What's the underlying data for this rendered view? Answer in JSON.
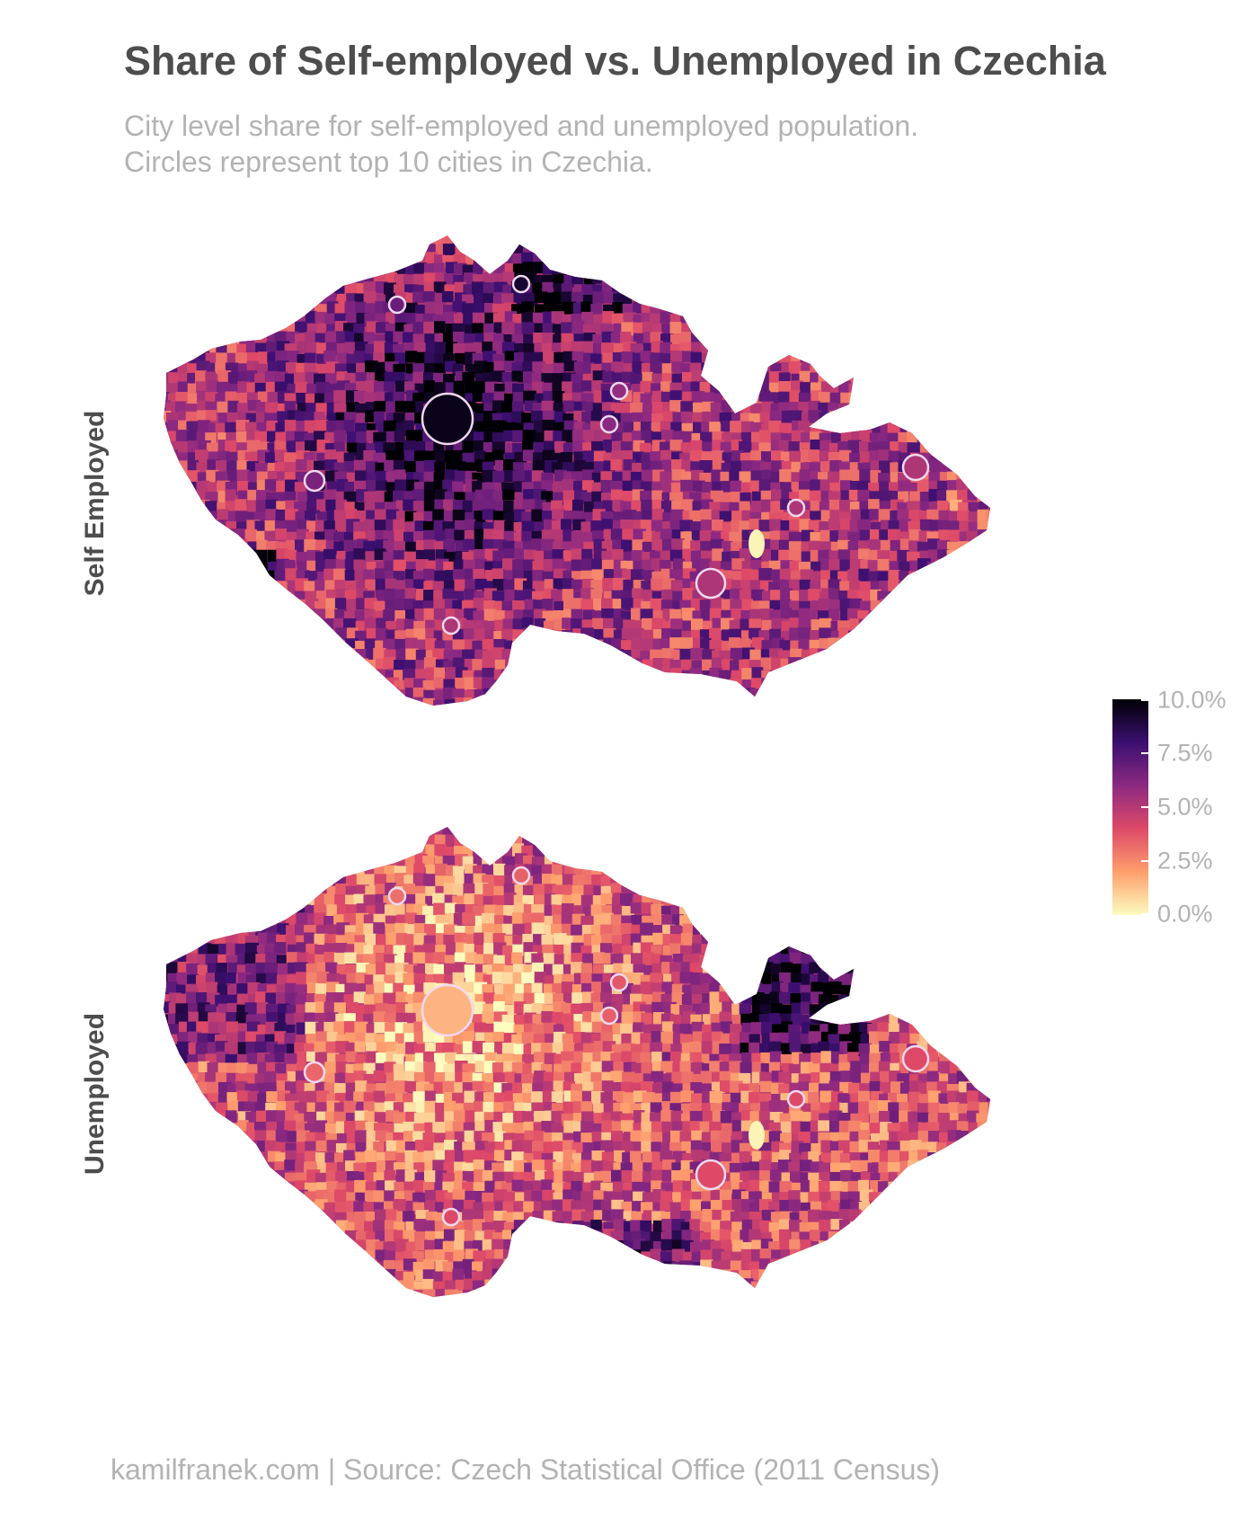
{
  "title": "Share of Self-employed vs. Unemployed in Czechia",
  "subtitle": {
    "line1": "City level share for self-employed and unemployed population.",
    "line2": "Circles represent top 10 cities in Czechia."
  },
  "facets": [
    {
      "label": "Self Employed",
      "indicator": "self_employed"
    },
    {
      "label": "Unemployed",
      "indicator": "unemployed"
    }
  ],
  "legend": {
    "ticks": [
      "10.0%",
      "7.5%",
      "5.0%",
      "2.5%",
      "0.0%"
    ],
    "range": [
      0,
      10
    ],
    "palette": [
      "#000004",
      "#3b0f70",
      "#8c2981",
      "#de4968",
      "#fe9f6d",
      "#fcfdbf"
    ]
  },
  "colors": {
    "title": "#4d4d4d",
    "muted_text": "#b3b3b3",
    "circle_outline": "#f0d8f0"
  },
  "caption": "kamilfranek.com  |  Source: Czech Statistical Office (2011 Census)"
}
